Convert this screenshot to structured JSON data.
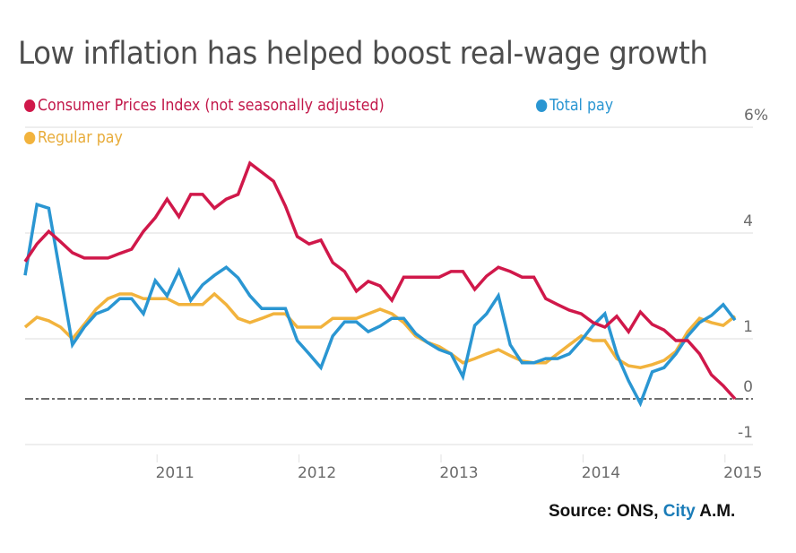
{
  "chart_data": {
    "type": "line",
    "title": "Low inflation has helped boost real-wage growth",
    "xlabel": "",
    "ylabel": "",
    "y_unit_label": "6%",
    "yticks": [
      {
        "value": 6,
        "label": "6%"
      },
      {
        "value": 4,
        "label": "4"
      },
      {
        "value": 1,
        "label": "1"
      },
      {
        "value": 0,
        "label": "0"
      },
      {
        "value": -1,
        "label": "-1"
      }
    ],
    "xticks": [
      {
        "index": 11,
        "label": "2011"
      },
      {
        "index": 23,
        "label": "2012"
      },
      {
        "index": 35,
        "label": "2013"
      },
      {
        "index": 47,
        "label": "2014"
      },
      {
        "index": 59,
        "label": "2015"
      }
    ],
    "x_start": "Feb 2010",
    "x_end": "Feb 2015",
    "x_frequency": "monthly",
    "zero_line": "dash-dot",
    "grid": true,
    "legend_position": "top-left",
    "series": [
      {
        "name": "Consumer Prices Index (not seasonally adjusted)",
        "color": "#d0184a",
        "values": [
          3.19,
          3.69,
          4.03,
          3.75,
          3.44,
          3.29,
          3.29,
          3.29,
          3.42,
          3.54,
          4.03,
          4.29,
          4.64,
          4.31,
          4.73,
          4.73,
          4.47,
          4.64,
          4.73,
          5.32,
          5.15,
          4.98,
          4.51,
          3.9,
          3.69,
          3.8,
          3.16,
          2.91,
          2.35,
          2.63,
          2.5,
          2.09,
          2.75,
          2.75,
          2.75,
          2.75,
          2.91,
          2.91,
          2.4,
          2.78,
          3.03,
          2.91,
          2.75,
          2.75,
          2.14,
          1.97,
          1.81,
          1.71,
          1.46,
          1.33,
          1.64,
          1.2,
          1.76,
          1.41,
          1.25,
          0.97,
          0.97,
          0.75,
          0.4,
          0.22,
          0.0
        ]
      },
      {
        "name": "Total pay",
        "color": "#2a96d2",
        "values": [
          2.8,
          4.54,
          4.47,
          2.78,
          0.9,
          1.33,
          1.71,
          1.84,
          2.14,
          2.14,
          1.71,
          2.65,
          2.22,
          2.93,
          2.09,
          2.53,
          2.8,
          3.03,
          2.73,
          2.22,
          1.86,
          1.86,
          1.86,
          0.97,
          0.75,
          0.52,
          1.08,
          1.48,
          1.48,
          1.2,
          1.36,
          1.58,
          1.58,
          1.15,
          0.94,
          0.82,
          0.75,
          0.37,
          1.38,
          1.71,
          2.22,
          0.9,
          0.6,
          0.6,
          0.67,
          0.67,
          0.75,
          0.97,
          1.38,
          1.71,
          0.75,
          0.3,
          -0.1,
          0.45,
          0.52,
          0.75,
          1.08,
          1.46,
          1.66,
          1.97,
          1.53
        ]
      },
      {
        "name": "Regular pay",
        "color": "#f2b33d",
        "values": [
          1.33,
          1.61,
          1.51,
          1.33,
          1.0,
          1.41,
          1.84,
          2.14,
          2.27,
          2.27,
          2.14,
          2.14,
          2.14,
          1.97,
          1.97,
          1.97,
          2.27,
          1.97,
          1.58,
          1.46,
          1.58,
          1.71,
          1.71,
          1.33,
          1.33,
          1.33,
          1.58,
          1.58,
          1.58,
          1.71,
          1.84,
          1.71,
          1.46,
          1.08,
          0.94,
          0.87,
          0.75,
          0.6,
          0.67,
          0.75,
          0.82,
          0.72,
          0.63,
          0.6,
          0.6,
          0.75,
          0.9,
          1.08,
          0.97,
          0.97,
          0.67,
          0.55,
          0.52,
          0.57,
          0.64,
          0.79,
          1.2,
          1.58,
          1.46,
          1.38,
          1.64
        ]
      }
    ]
  },
  "source": {
    "prefix": "Source: ONS, ",
    "brand": "City",
    "suffix": " A.M."
  }
}
